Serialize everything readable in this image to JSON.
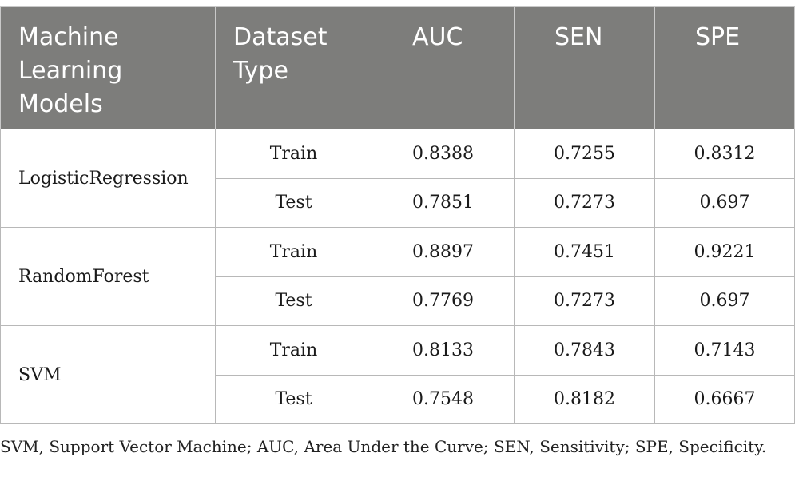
{
  "table": {
    "headers": [
      "Machine Learning Models",
      "Dataset Type",
      "AUC",
      "SEN",
      "SPE"
    ],
    "groups": [
      {
        "model": "LogisticRegression",
        "rows": [
          {
            "dataset": "Train",
            "auc": "0.8388",
            "sen": "0.7255",
            "spe": "0.8312"
          },
          {
            "dataset": "Test",
            "auc": "0.7851",
            "sen": "0.7273",
            "spe": "0.697"
          }
        ]
      },
      {
        "model": "RandomForest",
        "rows": [
          {
            "dataset": "Train",
            "auc": "0.8897",
            "sen": "0.7451",
            "spe": "0.9221"
          },
          {
            "dataset": "Test",
            "auc": "0.7769",
            "sen": "0.7273",
            "spe": "0.697"
          }
        ]
      },
      {
        "model": "SVM",
        "rows": [
          {
            "dataset": "Train",
            "auc": "0.8133",
            "sen": "0.7843",
            "spe": "0.7143"
          },
          {
            "dataset": "Test",
            "auc": "0.7548",
            "sen": "0.8182",
            "spe": "0.6667"
          }
        ]
      }
    ]
  },
  "footnote": "SVM, Support Vector Machine; AUC, Area Under the Curve; SEN, Sensitivity; SPE, Specificity."
}
